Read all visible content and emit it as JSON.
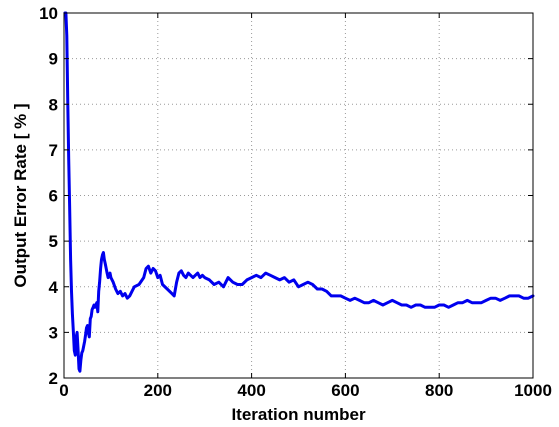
{
  "chart_data": {
    "type": "line",
    "title": "",
    "xlabel": "Iteration number",
    "ylabel": "Output Error Rate [ % ]",
    "xlim": [
      0,
      1000
    ],
    "ylim": [
      2,
      10
    ],
    "x_ticks": [
      0,
      200,
      400,
      600,
      800,
      1000
    ],
    "y_ticks": [
      2,
      3,
      4,
      5,
      6,
      7,
      8,
      9,
      10
    ],
    "x_tick_labels": [
      "0",
      "200",
      "400",
      "600",
      "800",
      "1000"
    ],
    "y_tick_labels": [
      "2",
      "3",
      "4",
      "5",
      "6",
      "7",
      "8",
      "9",
      "10"
    ],
    "grid": true,
    "legend": "none",
    "line_color": "#0000ee",
    "series": [
      {
        "x": [
          2,
          4,
          6,
          8,
          10,
          12,
          14,
          16,
          18,
          20,
          22,
          24,
          26,
          28,
          30,
          32,
          34,
          36,
          38,
          40,
          42,
          44,
          46,
          48,
          50,
          52,
          54,
          56,
          58,
          60,
          62,
          64,
          66,
          68,
          70,
          72,
          74,
          76,
          78,
          80,
          82,
          84,
          86,
          88,
          90,
          92,
          94,
          96,
          98,
          100,
          105,
          110,
          115,
          120,
          125,
          130,
          135,
          140,
          145,
          150,
          160,
          170,
          175,
          180,
          185,
          190,
          195,
          200,
          205,
          210,
          220,
          230,
          235,
          240,
          245,
          250,
          255,
          260,
          265,
          270,
          275,
          280,
          285,
          290,
          295,
          300,
          310,
          320,
          330,
          340,
          350,
          360,
          370,
          380,
          390,
          400,
          410,
          420,
          430,
          440,
          450,
          460,
          470,
          480,
          490,
          500,
          510,
          520,
          530,
          540,
          550,
          560,
          570,
          580,
          590,
          600,
          610,
          620,
          630,
          640,
          650,
          660,
          670,
          680,
          690,
          700,
          710,
          720,
          730,
          740,
          750,
          760,
          770,
          780,
          790,
          800,
          810,
          820,
          830,
          840,
          850,
          860,
          870,
          880,
          890,
          900,
          910,
          920,
          930,
          940,
          950,
          960,
          970,
          980,
          990,
          1000
        ],
        "y": [
          10.0,
          10.0,
          9.5,
          8.0,
          6.8,
          5.8,
          4.6,
          3.9,
          3.4,
          3.0,
          2.6,
          2.5,
          2.9,
          3.0,
          2.6,
          2.2,
          2.15,
          2.4,
          2.55,
          2.6,
          2.7,
          2.8,
          2.95,
          3.1,
          3.15,
          3.0,
          2.9,
          3.3,
          3.35,
          3.5,
          3.55,
          3.6,
          3.55,
          3.6,
          3.65,
          3.45,
          3.9,
          4.1,
          4.4,
          4.6,
          4.7,
          4.75,
          4.6,
          4.5,
          4.4,
          4.3,
          4.2,
          4.25,
          4.3,
          4.2,
          4.1,
          3.95,
          3.85,
          3.9,
          3.8,
          3.85,
          3.75,
          3.8,
          3.9,
          4.0,
          4.05,
          4.2,
          4.4,
          4.45,
          4.3,
          4.4,
          4.35,
          4.2,
          4.25,
          4.05,
          3.95,
          3.85,
          3.8,
          4.1,
          4.3,
          4.35,
          4.25,
          4.2,
          4.3,
          4.25,
          4.2,
          4.25,
          4.3,
          4.2,
          4.25,
          4.2,
          4.15,
          4.05,
          4.1,
          4.0,
          4.2,
          4.1,
          4.05,
          4.05,
          4.15,
          4.2,
          4.25,
          4.2,
          4.3,
          4.25,
          4.2,
          4.15,
          4.2,
          4.1,
          4.15,
          4.0,
          4.05,
          4.1,
          4.05,
          3.95,
          3.95,
          3.9,
          3.8,
          3.8,
          3.8,
          3.75,
          3.7,
          3.75,
          3.7,
          3.65,
          3.65,
          3.7,
          3.65,
          3.6,
          3.65,
          3.7,
          3.65,
          3.6,
          3.6,
          3.55,
          3.6,
          3.6,
          3.55,
          3.55,
          3.55,
          3.6,
          3.6,
          3.55,
          3.6,
          3.65,
          3.65,
          3.7,
          3.65,
          3.65,
          3.65,
          3.7,
          3.75,
          3.75,
          3.7,
          3.75,
          3.8,
          3.8,
          3.8,
          3.75,
          3.75,
          3.8
        ]
      }
    ]
  }
}
